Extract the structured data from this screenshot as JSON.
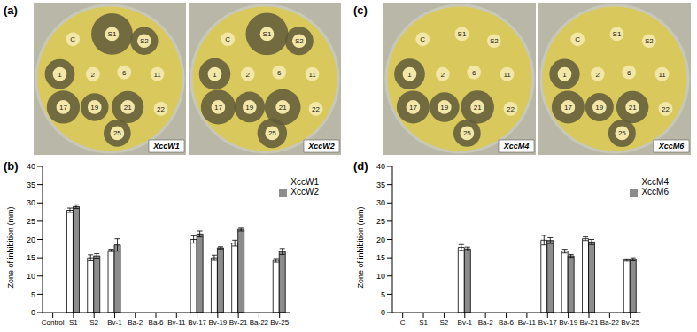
{
  "panels": [
    "(a)",
    "(b)",
    "(c)",
    "(d)"
  ],
  "plates": [
    {
      "wells": [
        "C",
        "S1",
        "S2",
        "1",
        "2",
        "6",
        "11",
        "17",
        "19",
        "21",
        "22",
        "25"
      ]
    },
    {
      "wells": [
        "C",
        "S1",
        "S2",
        "1",
        "2",
        "6",
        "11",
        "17",
        "19",
        "21",
        "22",
        "25"
      ]
    }
  ],
  "chart_data": [
    {
      "type": "bar",
      "y_label": "Zone of inhibition (mm)",
      "categories": [
        "Control",
        "S1",
        "S2",
        "Bv-1",
        "Ba-2",
        "Ba-6",
        "Bv-11",
        "Bv-17",
        "Bv-19",
        "Bv-21",
        "Ba-22",
        "Bv-25"
      ],
      "series": [
        {
          "name": "XccW1",
          "color": "#ffffff",
          "values": [
            0,
            28,
            15,
            17,
            0,
            0,
            0,
            20,
            15,
            19,
            0,
            14.3
          ],
          "errors": [
            0,
            0.6,
            0.8,
            0.3,
            0,
            0,
            0,
            1,
            0.7,
            0.8,
            0,
            0.5
          ]
        },
        {
          "name": "XccW2",
          "color": "#8c8c8c",
          "values": [
            0,
            29,
            15.5,
            18.5,
            0,
            0,
            0,
            21.5,
            17.7,
            22.8,
            0,
            16.7
          ],
          "errors": [
            0,
            0.5,
            0.6,
            1.7,
            0,
            0,
            0,
            0.8,
            0.3,
            0.5,
            0,
            0.8
          ]
        }
      ],
      "ylim": [
        0,
        40
      ],
      "yticks": [
        0,
        5,
        10,
        15,
        20,
        25,
        30,
        35,
        40
      ],
      "legend": "top-right"
    },
    {
      "type": "bar",
      "y_label": "Zone of inhibition (mm)",
      "categories": [
        "C",
        "S1",
        "S2",
        "Bv-1",
        "Ba-2",
        "Ba-6",
        "Bv-11",
        "Bv-17",
        "Bv-19",
        "Bv-21",
        "Ba-22",
        "Bv-25"
      ],
      "series": [
        {
          "name": "XccM4",
          "color": "#ffffff",
          "values": [
            0,
            0,
            0,
            17.8,
            0,
            0,
            0,
            19.8,
            16.8,
            20.2,
            0,
            14.4
          ],
          "errors": [
            0,
            0,
            0,
            0.8,
            0,
            0,
            0,
            1.3,
            0.5,
            0.5,
            0,
            0.3
          ]
        },
        {
          "name": "XccM6",
          "color": "#8c8c8c",
          "values": [
            0,
            0,
            0,
            17.4,
            0,
            0,
            0,
            19.7,
            15.5,
            19.3,
            0,
            14.6
          ],
          "errors": [
            0,
            0,
            0,
            0.5,
            0,
            0,
            0,
            0.8,
            0.4,
            0.7,
            0,
            0.4
          ]
        }
      ],
      "ylim": [
        0,
        40
      ],
      "yticks": [
        0,
        5,
        10,
        15,
        20,
        25,
        30,
        35,
        40
      ],
      "legend": "top-right"
    }
  ]
}
